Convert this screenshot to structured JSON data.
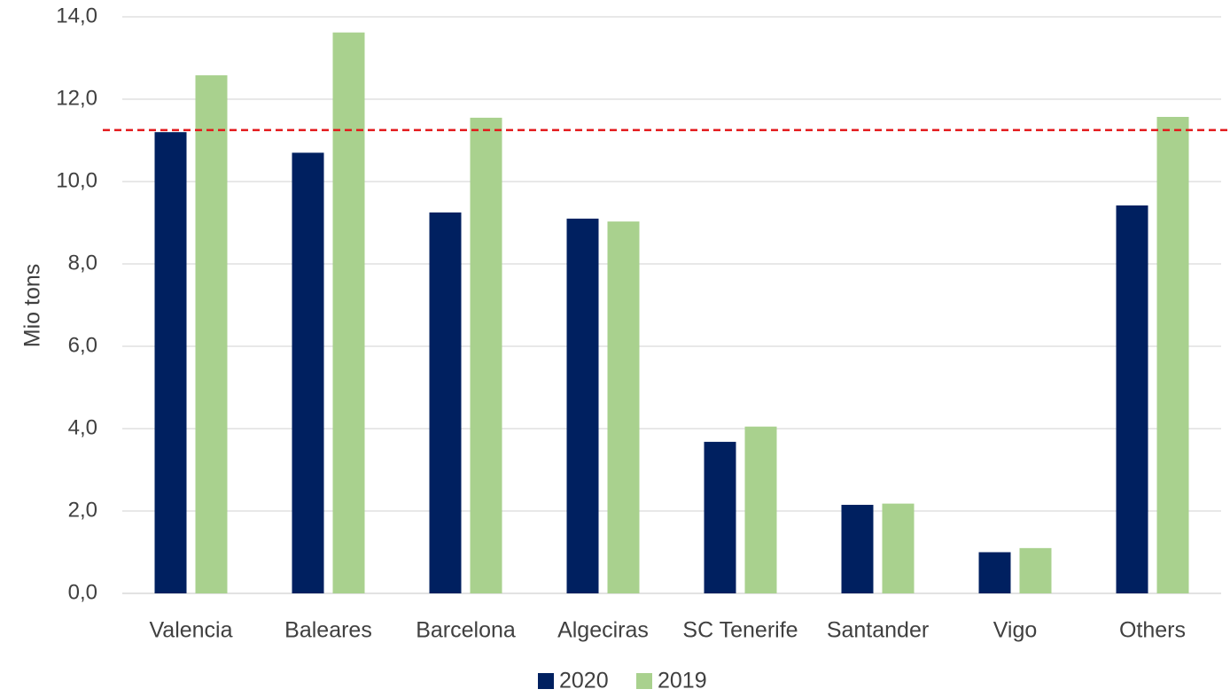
{
  "chart_data": {
    "type": "bar",
    "title": "",
    "xlabel": "",
    "ylabel": "Mio tons",
    "ylim": [
      0,
      14
    ],
    "ytick_step": 2,
    "ytick_labels": [
      "0,0",
      "2,0",
      "4,0",
      "6,0",
      "8,0",
      "10,0",
      "12,0",
      "14,0"
    ],
    "categories": [
      "Valencia",
      "Baleares",
      "Barcelona",
      "Algeciras",
      "SC Tenerife",
      "Santander",
      "Vigo",
      "Others"
    ],
    "series": [
      {
        "name": "2020",
        "color": "#002060",
        "values": [
          11.2,
          10.7,
          9.25,
          9.1,
          3.68,
          2.15,
          1.0,
          9.42
        ]
      },
      {
        "name": "2019",
        "color": "#a9d18e",
        "values": [
          12.58,
          13.62,
          11.55,
          9.03,
          4.05,
          2.18,
          1.1,
          11.57
        ]
      }
    ],
    "reference_line": {
      "value": 11.25,
      "color": "#e31a1c",
      "style": "dashed"
    },
    "grid": true,
    "legend_position": "bottom-center"
  }
}
